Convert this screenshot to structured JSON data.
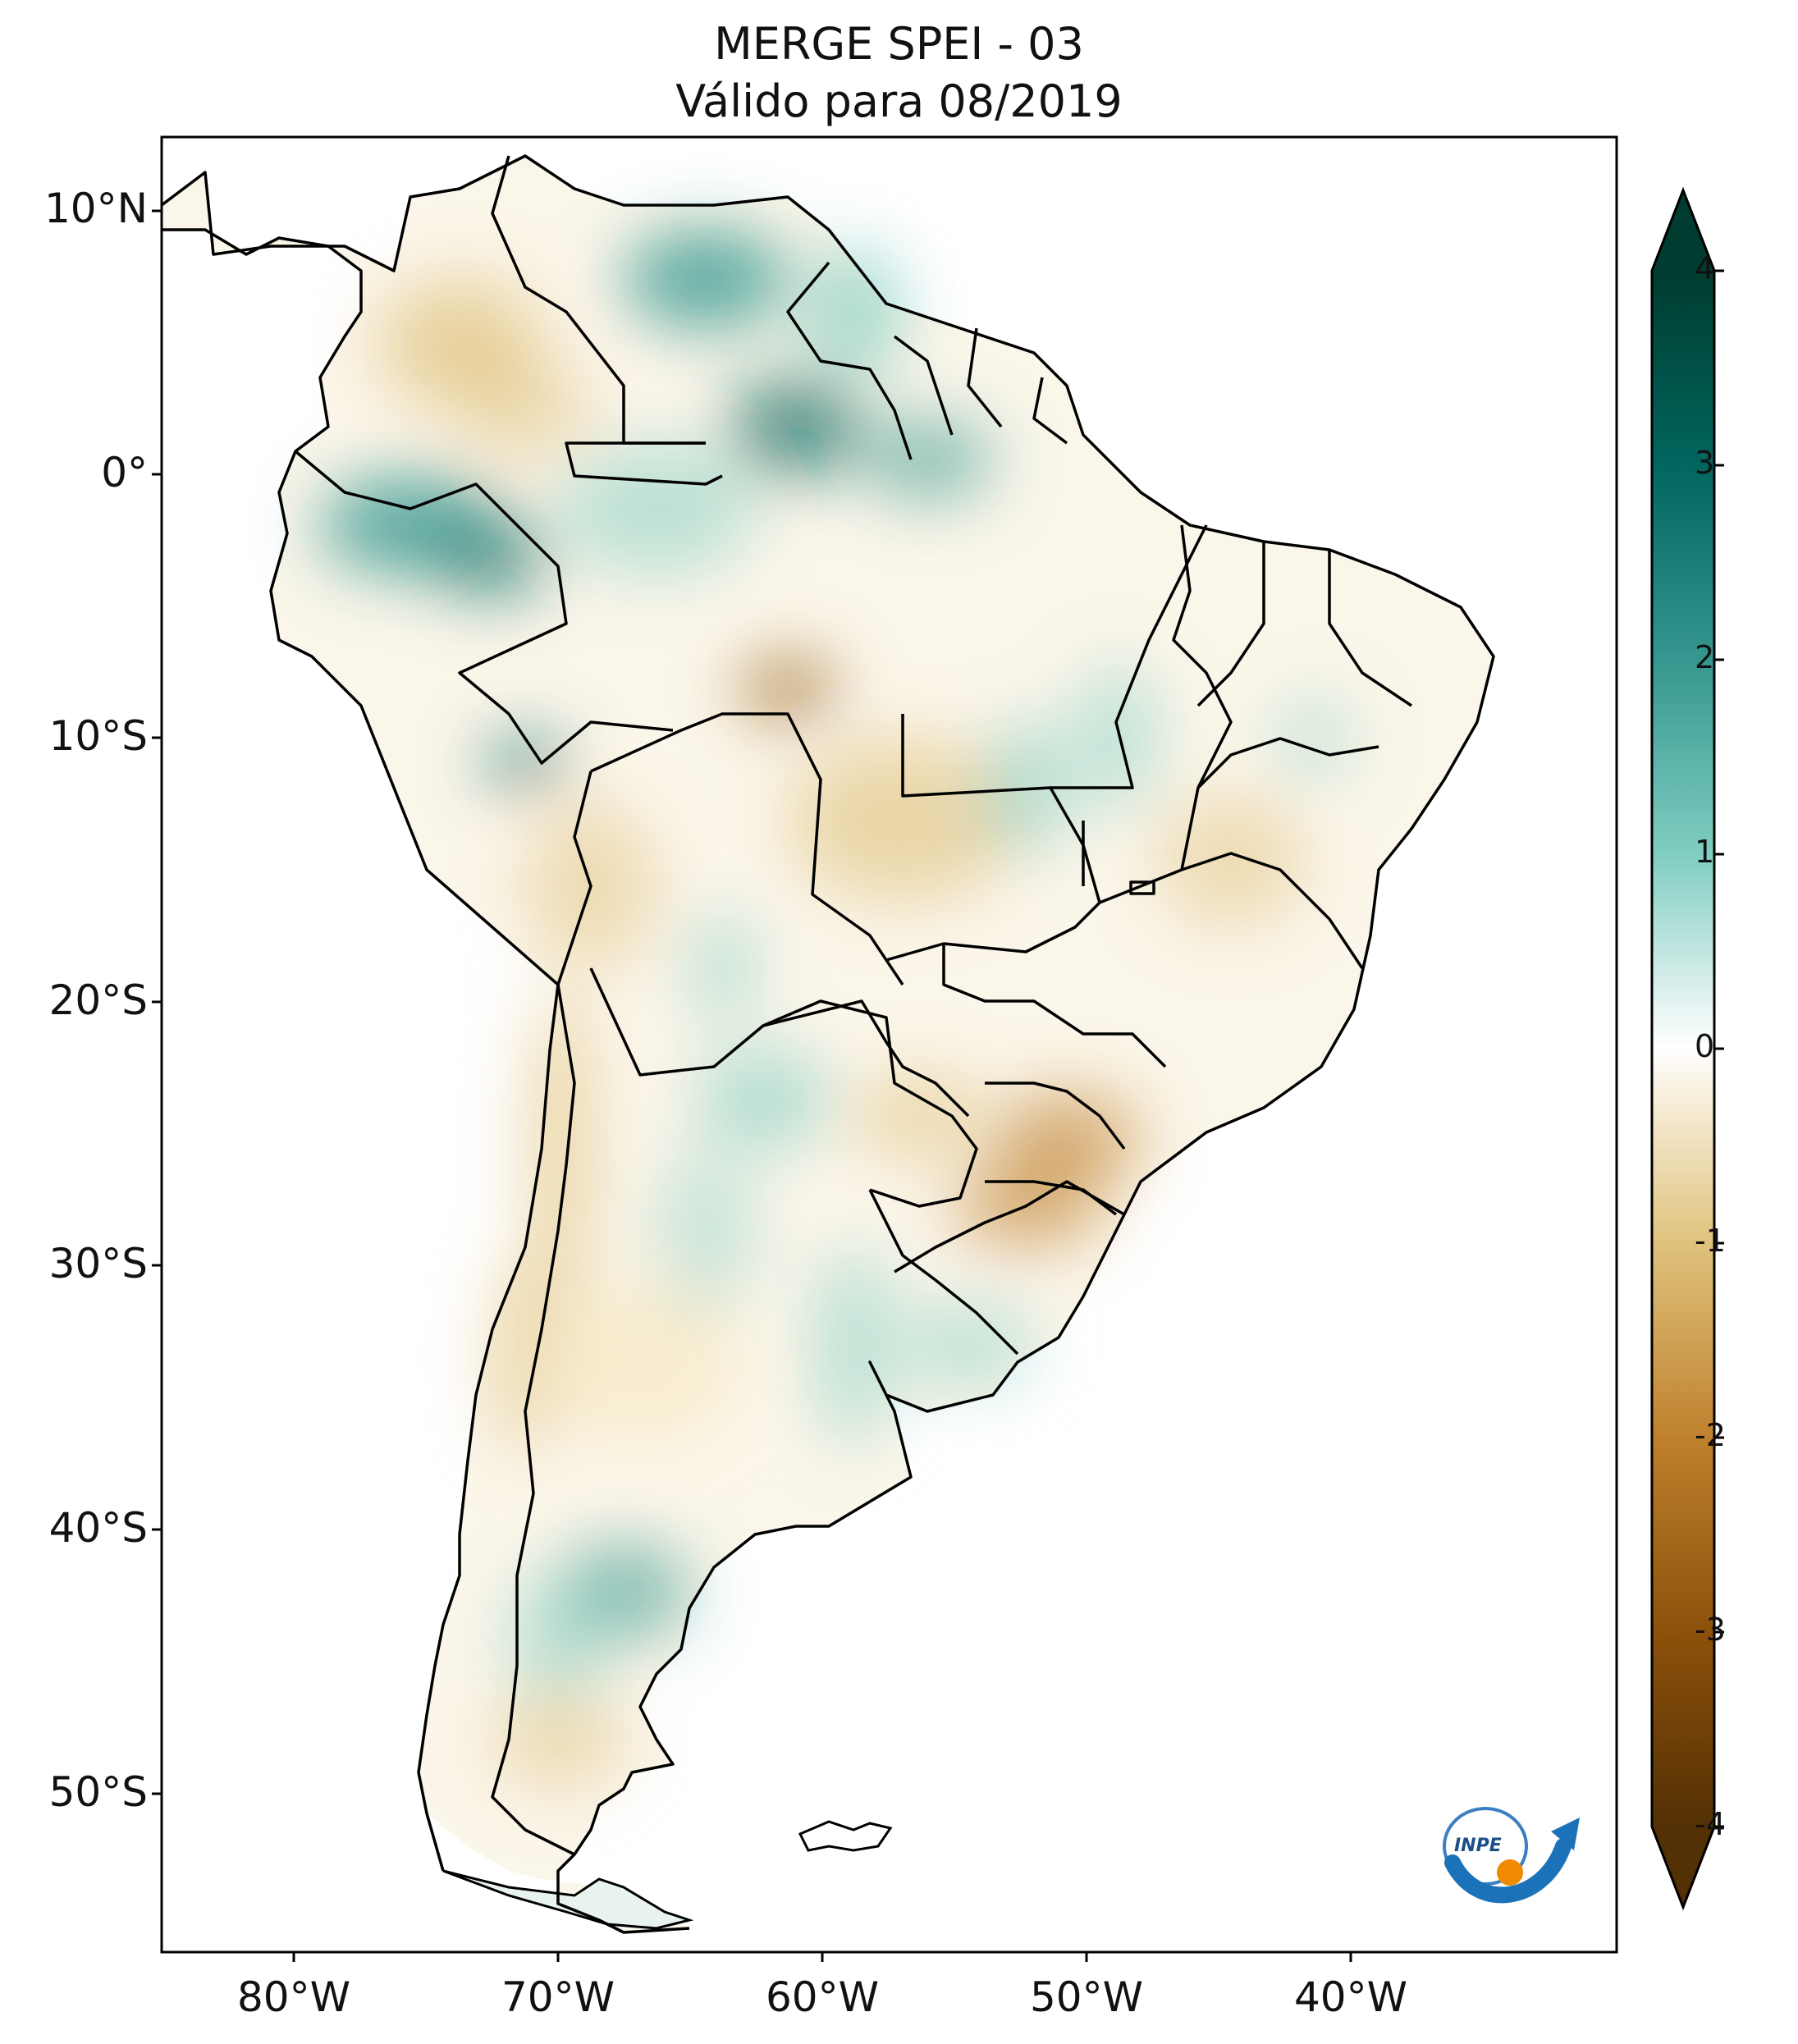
{
  "title": {
    "line1": "MERGE   SPEI - 03",
    "line2": "Válido para 08/2019"
  },
  "map": {
    "projection": "PlateCarree",
    "lon_range": [
      -85,
      -30
    ],
    "lat_range": [
      -56,
      13
    ],
    "lat_ticks": [
      "10°N",
      "0°",
      "10°S",
      "20°S",
      "30°S",
      "40°S",
      "50°S"
    ],
    "lon_ticks": [
      "80°W",
      "70°W",
      "60°W",
      "50°W",
      "40°W"
    ],
    "field": "SPEI-03",
    "regions": [
      {
        "name": "north-amazon-wet",
        "level": 2.2
      },
      {
        "name": "venezuela-wet",
        "level": 2.5
      },
      {
        "name": "colombia-dry",
        "level": -1.0
      },
      {
        "name": "peru-wet",
        "level": 2.3
      },
      {
        "name": "mato-grosso-dry",
        "level": -1.0
      },
      {
        "name": "parana-dry",
        "level": -1.8
      },
      {
        "name": "paraguay-dry",
        "level": -1.3
      },
      {
        "name": "chile-dry",
        "level": -1.2
      },
      {
        "name": "patagonia-wet",
        "level": 2.0
      },
      {
        "name": "argentina-mixed",
        "level": -0.7
      },
      {
        "name": "northeast-brazil-mixed",
        "level": -0.6
      }
    ]
  },
  "colorbar": {
    "ticks": [
      "4",
      "3",
      "2",
      "1",
      "0",
      "-1",
      "-2",
      "-3",
      "-4"
    ],
    "colormap": "BrBG",
    "colors": [
      "#543005",
      "#8c510a",
      "#bf812d",
      "#dfc27d",
      "#f6e8c3",
      "#ffffff",
      "#c7eae5",
      "#80cdc1",
      "#35978f",
      "#01665e",
      "#003c30"
    ]
  },
  "logo": {
    "text": "INPE"
  }
}
